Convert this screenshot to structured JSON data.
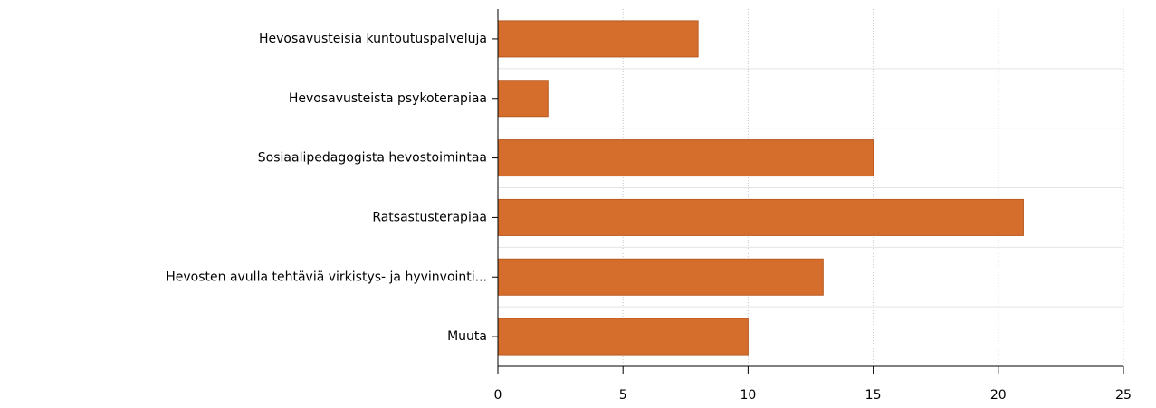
{
  "chart_data": {
    "type": "bar",
    "orientation": "horizontal",
    "categories": [
      "Hevosavusteisia kuntoutuspalveluja",
      "Hevosavusteista psykoterapiaa",
      "Sosiaalipedagogista hevostoimintaa",
      "Ratsastusterapiaa",
      "Hevosten avulla tehtäviä virkistys- ja hyvinvointi...",
      "Muuta"
    ],
    "values": [
      8,
      2,
      15,
      21,
      13,
      10
    ],
    "color": "#d56e2d",
    "xlim": [
      0,
      25
    ],
    "xticks": [
      0,
      5,
      10,
      15,
      20,
      25
    ],
    "grid": true
  }
}
